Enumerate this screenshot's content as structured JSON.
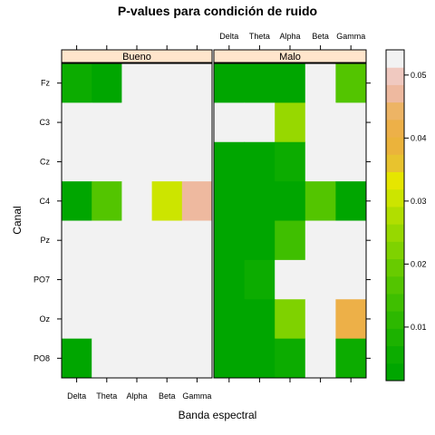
{
  "chart_data": {
    "type": "heatmap",
    "title": "P-values para condición de ruido",
    "xlabel": "Banda espectral",
    "ylabel": "Canal",
    "x_categories": [
      "Delta",
      "Theta",
      "Alpha",
      "Beta",
      "Gamma"
    ],
    "y_categories": [
      "Fz",
      "C3",
      "Cz",
      "C4",
      "Pz",
      "PO7",
      "Oz",
      "PO8"
    ],
    "panels": [
      {
        "name": "Bueno",
        "values": [
          [
            0.006,
            0.003,
            null,
            null,
            null
          ],
          [
            null,
            null,
            null,
            null,
            null
          ],
          [
            null,
            null,
            null,
            null,
            null
          ],
          [
            0.003,
            0.018,
            null,
            0.031,
            0.046
          ],
          [
            null,
            null,
            null,
            null,
            null
          ],
          [
            null,
            null,
            null,
            null,
            null
          ],
          [
            null,
            null,
            null,
            null,
            null
          ],
          [
            0.002,
            null,
            null,
            null,
            null
          ]
        ]
      },
      {
        "name": "Malo",
        "values": [
          [
            0.002,
            0.002,
            0.002,
            null,
            0.018
          ],
          [
            null,
            null,
            0.026,
            null,
            null
          ],
          [
            0.002,
            0.002,
            0.006,
            null,
            null
          ],
          [
            0.002,
            0.002,
            0.002,
            0.016,
            0.002
          ],
          [
            0.002,
            0.002,
            0.015,
            null,
            null
          ],
          [
            0.002,
            0.007,
            null,
            null,
            null
          ],
          [
            0.002,
            0.002,
            0.021,
            null,
            0.042
          ],
          [
            0.002,
            0.002,
            0.007,
            null,
            0.006
          ]
        ]
      }
    ],
    "colorbar": {
      "ticks": [
        0.01,
        0.02,
        0.03,
        0.04,
        0.05
      ],
      "range": [
        0.0015,
        0.054
      ],
      "bin_colors": [
        "#00A600",
        "#0CAC00",
        "#1CB200",
        "#2DB800",
        "#3FBF00",
        "#53C500",
        "#68CB00",
        "#7FD200",
        "#97D800",
        "#B1DE00",
        "#CCE500",
        "#E6E600",
        "#E8C32E",
        "#EBB33B",
        "#EDB048",
        "#EDB465",
        "#EEB99F",
        "#F0C9C0",
        "#F2F2F2"
      ],
      "missing_color": "#F2F2F2"
    }
  }
}
